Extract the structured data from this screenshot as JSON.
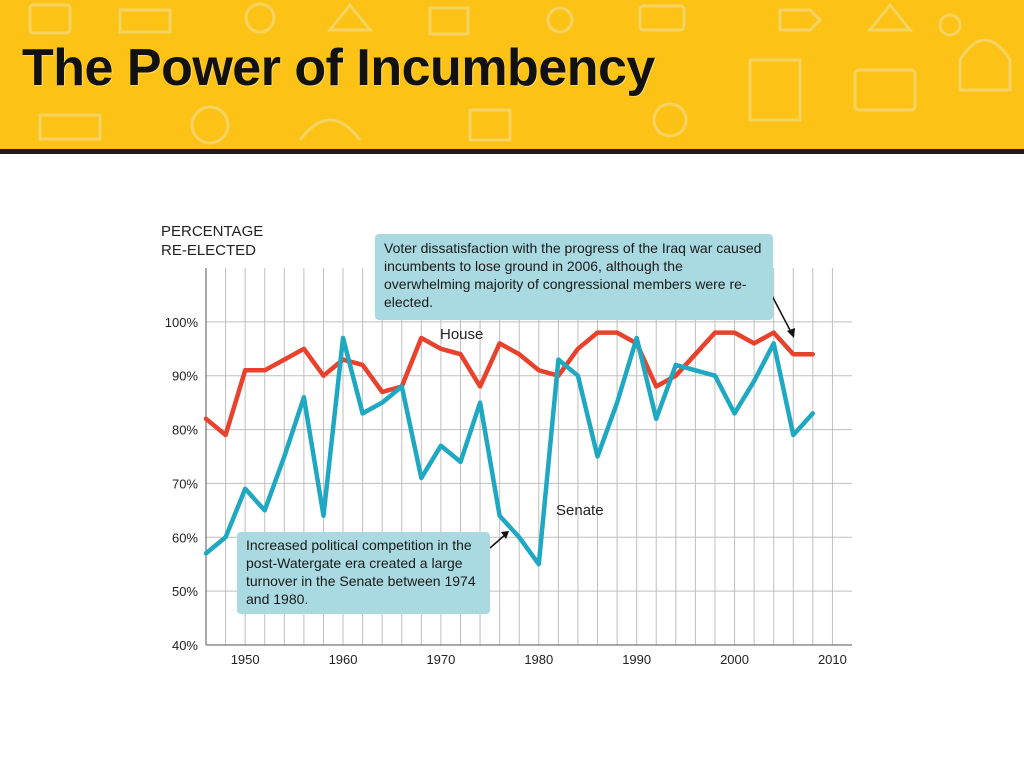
{
  "slide": {
    "title": "The Power of Incumbency"
  },
  "colors": {
    "banner": "#fcc316",
    "house": "#e8412c",
    "senate": "#1ea8c2",
    "annotation_bg": "#a9d9e1"
  },
  "chart_data": {
    "type": "line",
    "ylabel_lines": [
      "PERCENTAGE",
      "RE-ELECTED"
    ],
    "x_ticks": [
      1950,
      1960,
      1970,
      1980,
      1990,
      2000,
      2010
    ],
    "x_tick_labels": [
      "1950",
      "1960",
      "1970",
      "1980",
      "1990",
      "2000",
      "2010"
    ],
    "y_ticks": [
      40,
      50,
      60,
      70,
      80,
      90,
      100
    ],
    "y_tick_labels": [
      "40%",
      "50%",
      "60%",
      "70%",
      "80%",
      "90%",
      "100%"
    ],
    "xlim": [
      1946,
      2012
    ],
    "ylim": [
      40,
      110
    ],
    "grid": true,
    "series": [
      {
        "name": "House",
        "x": [
          1946,
          1948,
          1950,
          1952,
          1954,
          1956,
          1958,
          1960,
          1962,
          1964,
          1966,
          1968,
          1970,
          1972,
          1974,
          1976,
          1978,
          1980,
          1982,
          1984,
          1986,
          1988,
          1990,
          1992,
          1994,
          1996,
          1998,
          2000,
          2002,
          2004,
          2006,
          2008
        ],
        "values": [
          82,
          79,
          91,
          91,
          93,
          95,
          90,
          93,
          92,
          87,
          88,
          97,
          95,
          94,
          88,
          96,
          94,
          91,
          90,
          95,
          98,
          98,
          96,
          88,
          90,
          94,
          98,
          98,
          96,
          98,
          94,
          94
        ]
      },
      {
        "name": "Senate",
        "x": [
          1946,
          1948,
          1950,
          1952,
          1954,
          1956,
          1958,
          1960,
          1962,
          1964,
          1966,
          1968,
          1970,
          1972,
          1974,
          1976,
          1978,
          1980,
          1982,
          1984,
          1986,
          1988,
          1990,
          1992,
          1994,
          1996,
          1998,
          2000,
          2002,
          2004,
          2006,
          2008
        ],
        "values": [
          57,
          60,
          69,
          65,
          75,
          86,
          64,
          97,
          83,
          85,
          88,
          71,
          77,
          74,
          85,
          64,
          60,
          55,
          93,
          90,
          75,
          85,
          97,
          82,
          92,
          91,
          90,
          83,
          89,
          96,
          79,
          83
        ]
      }
    ],
    "labels": {
      "house": "House",
      "senate": "Senate"
    },
    "annotations": [
      "Voter dissatisfaction with the progress of the Iraq war caused incumbents to lose ground in 2006, although the overwhelming majority of congressional members were re-elected.",
      "Increased political competition in the post-Watergate era created a large turnover in the Senate between 1974 and 1980."
    ]
  }
}
